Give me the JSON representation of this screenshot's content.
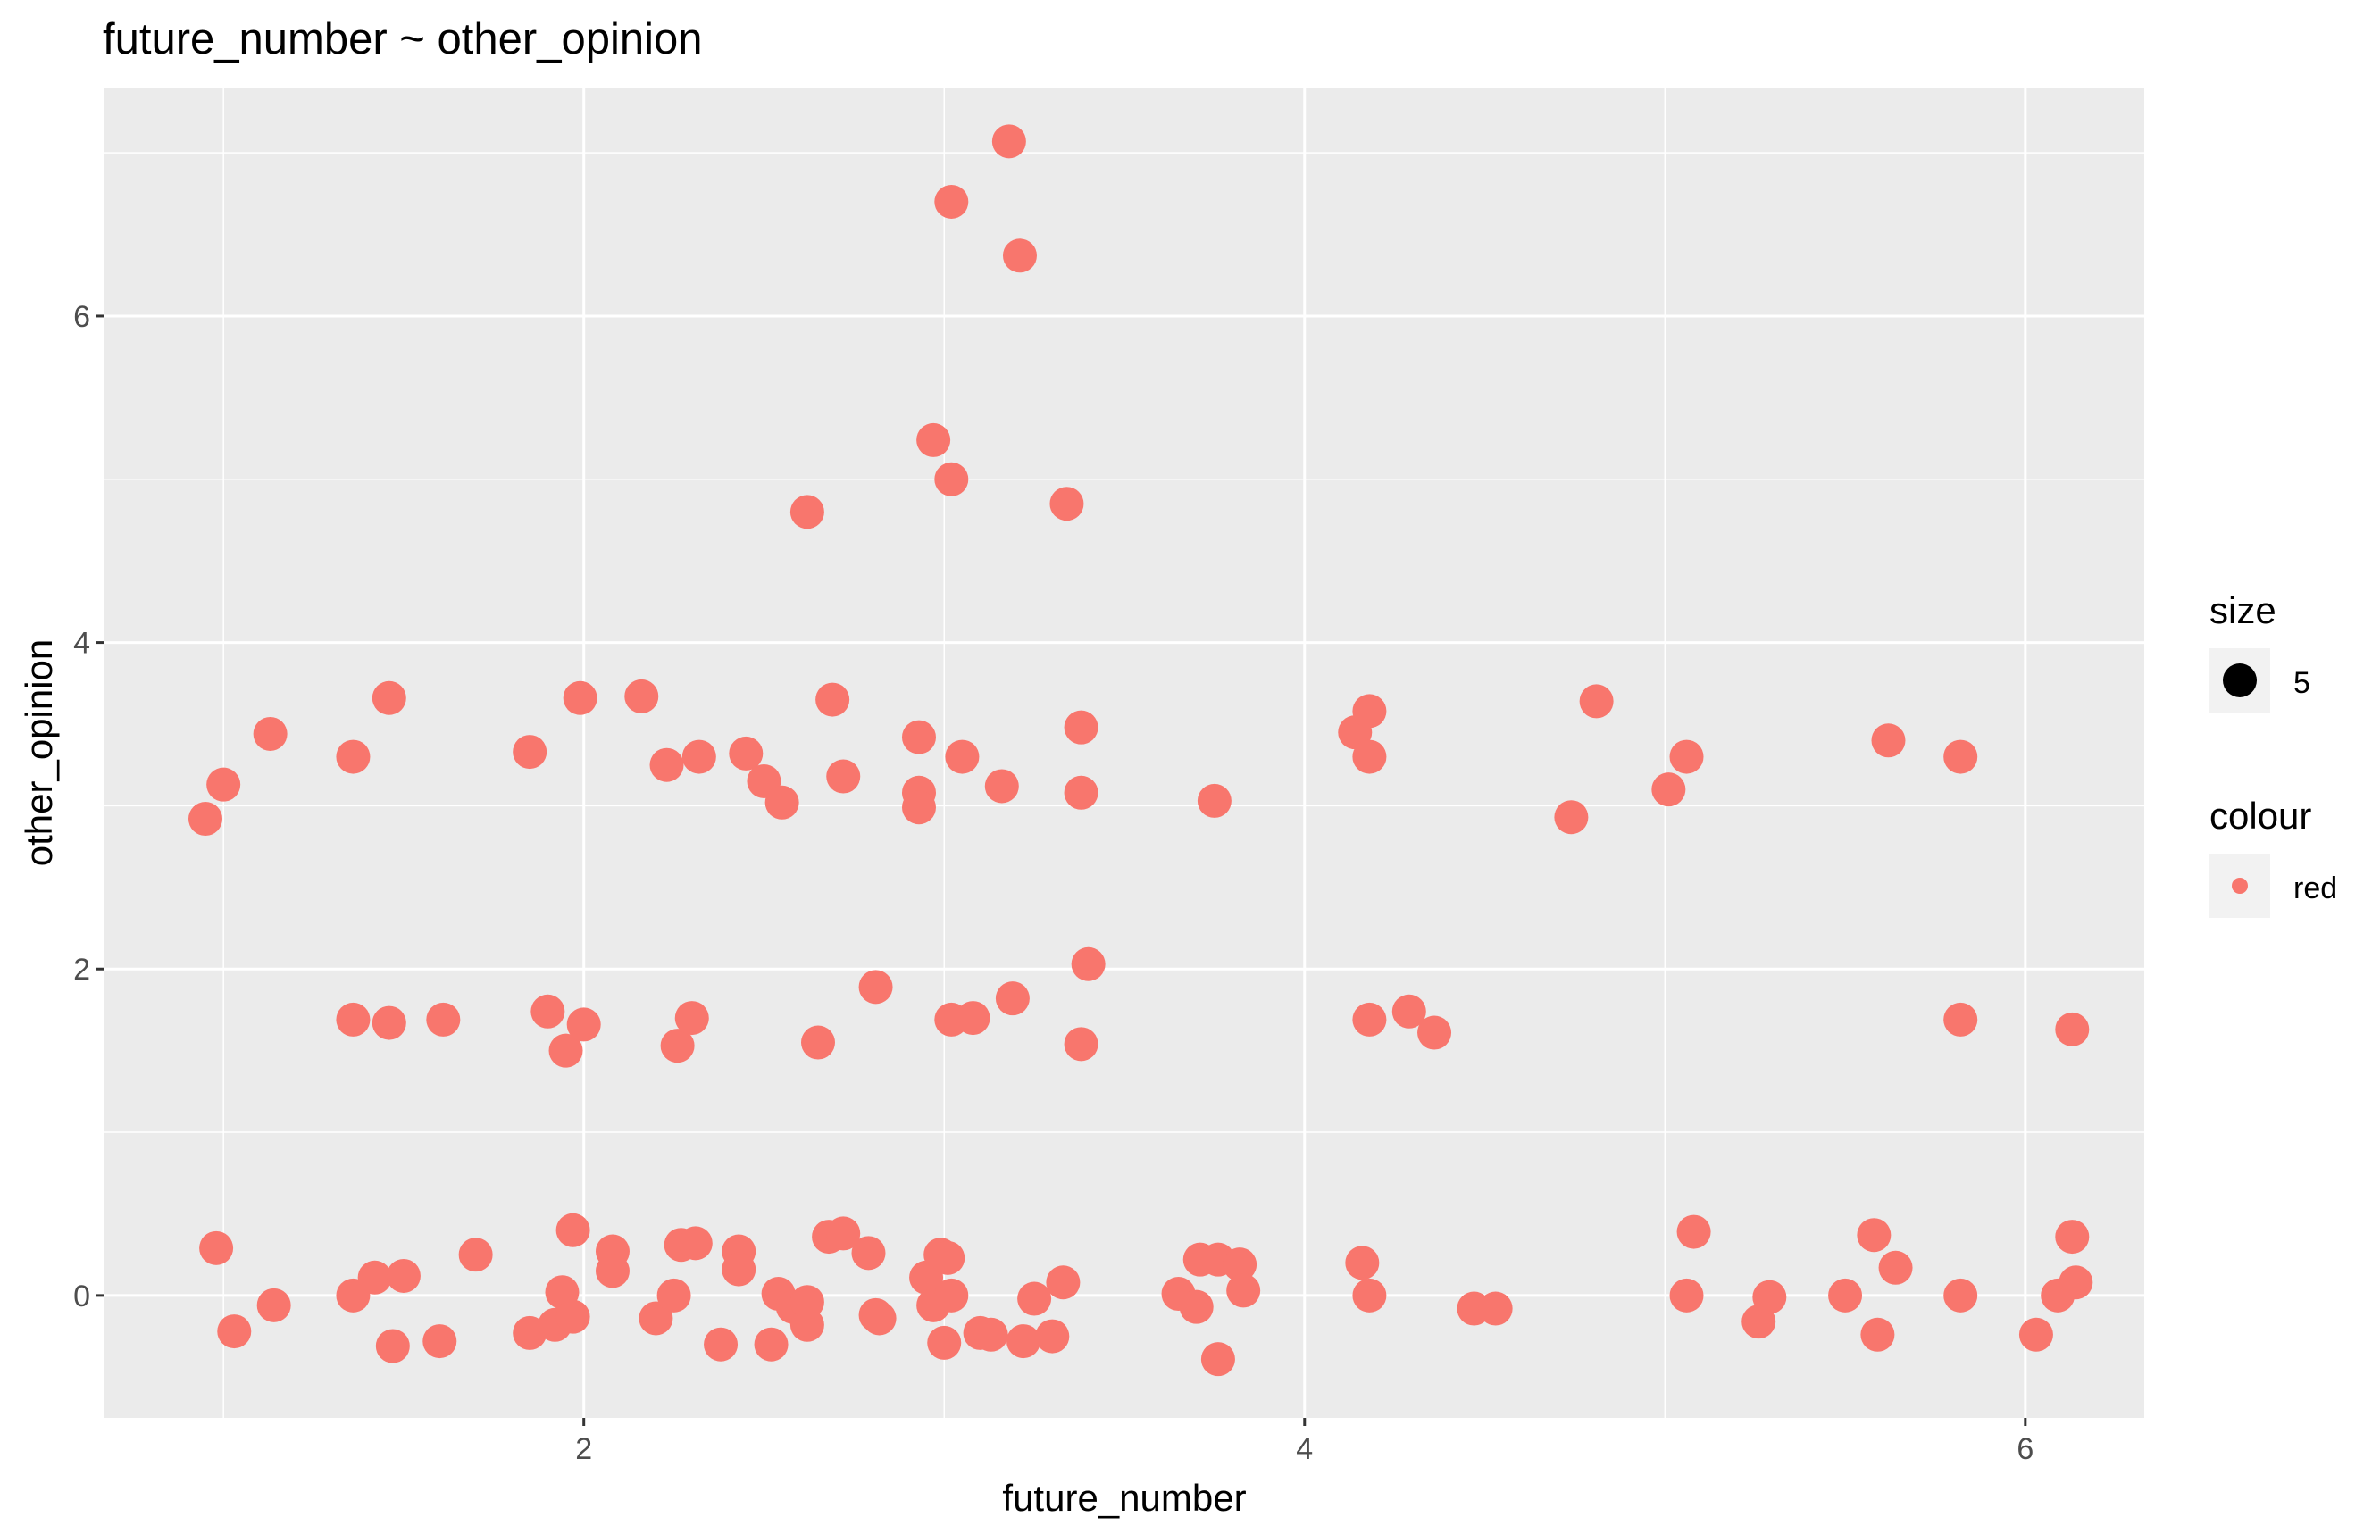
{
  "chart_data": {
    "type": "scatter",
    "title": "future_number ~ other_opinion",
    "xlabel": "future_number",
    "ylabel": "other_opinion",
    "xlim": [
      0.67,
      6.33
    ],
    "ylim": [
      -0.75,
      7.4
    ],
    "x_ticks": [
      2,
      4,
      6
    ],
    "x_tick_labels": [
      "2",
      "4",
      "6"
    ],
    "y_ticks": [
      0,
      2,
      4,
      6
    ],
    "y_tick_labels": [
      "0",
      "2",
      "4",
      "6"
    ],
    "grid": true,
    "legend_placement": "right",
    "point_color": "#F8766D",
    "point_size": 5,
    "legend": [
      {
        "title": "size",
        "label": "5"
      },
      {
        "title": "colour",
        "label": "red"
      }
    ],
    "points": [
      {
        "x": 3.18,
        "y": 7.07
      },
      {
        "x": 3.02,
        "y": 6.7
      },
      {
        "x": 3.21,
        "y": 6.37
      },
      {
        "x": 2.97,
        "y": 5.24
      },
      {
        "x": 3.02,
        "y": 5.0
      },
      {
        "x": 2.62,
        "y": 4.8
      },
      {
        "x": 3.34,
        "y": 4.85
      },
      {
        "x": 0.95,
        "y": 2.92
      },
      {
        "x": 1.0,
        "y": 3.13
      },
      {
        "x": 1.13,
        "y": 3.44
      },
      {
        "x": 1.36,
        "y": 3.3
      },
      {
        "x": 1.46,
        "y": 3.66
      },
      {
        "x": 1.85,
        "y": 3.33
      },
      {
        "x": 1.99,
        "y": 3.66
      },
      {
        "x": 2.16,
        "y": 3.67
      },
      {
        "x": 2.23,
        "y": 3.25
      },
      {
        "x": 2.32,
        "y": 3.3
      },
      {
        "x": 2.45,
        "y": 3.32
      },
      {
        "x": 2.5,
        "y": 3.15
      },
      {
        "x": 2.55,
        "y": 3.02
      },
      {
        "x": 2.69,
        "y": 3.65
      },
      {
        "x": 2.72,
        "y": 3.18
      },
      {
        "x": 2.93,
        "y": 3.42
      },
      {
        "x": 2.93,
        "y": 3.08
      },
      {
        "x": 2.93,
        "y": 2.99
      },
      {
        "x": 3.05,
        "y": 3.3
      },
      {
        "x": 3.16,
        "y": 3.12
      },
      {
        "x": 3.38,
        "y": 3.48
      },
      {
        "x": 3.38,
        "y": 3.08
      },
      {
        "x": 3.75,
        "y": 3.03
      },
      {
        "x": 4.14,
        "y": 3.45
      },
      {
        "x": 4.18,
        "y": 3.58
      },
      {
        "x": 4.18,
        "y": 3.3
      },
      {
        "x": 4.74,
        "y": 2.93
      },
      {
        "x": 4.81,
        "y": 3.64
      },
      {
        "x": 5.01,
        "y": 3.1
      },
      {
        "x": 5.06,
        "y": 3.3
      },
      {
        "x": 5.62,
        "y": 3.4
      },
      {
        "x": 5.82,
        "y": 3.3
      },
      {
        "x": 1.36,
        "y": 1.69
      },
      {
        "x": 1.46,
        "y": 1.67
      },
      {
        "x": 1.61,
        "y": 1.69
      },
      {
        "x": 1.9,
        "y": 1.74
      },
      {
        "x": 1.95,
        "y": 1.5
      },
      {
        "x": 2.0,
        "y": 1.66
      },
      {
        "x": 2.26,
        "y": 1.53
      },
      {
        "x": 2.3,
        "y": 1.7
      },
      {
        "x": 2.65,
        "y": 1.55
      },
      {
        "x": 2.81,
        "y": 1.89
      },
      {
        "x": 3.02,
        "y": 1.69
      },
      {
        "x": 3.08,
        "y": 1.7
      },
      {
        "x": 3.19,
        "y": 1.82
      },
      {
        "x": 3.38,
        "y": 1.54
      },
      {
        "x": 3.4,
        "y": 2.03
      },
      {
        "x": 4.18,
        "y": 1.69
      },
      {
        "x": 4.29,
        "y": 1.74
      },
      {
        "x": 4.36,
        "y": 1.61
      },
      {
        "x": 5.82,
        "y": 1.69
      },
      {
        "x": 6.13,
        "y": 1.63
      },
      {
        "x": 0.98,
        "y": 0.29
      },
      {
        "x": 1.03,
        "y": -0.22
      },
      {
        "x": 1.14,
        "y": -0.06
      },
      {
        "x": 1.36,
        "y": 0.0
      },
      {
        "x": 1.42,
        "y": 0.11
      },
      {
        "x": 1.47,
        "y": -0.31
      },
      {
        "x": 1.5,
        "y": 0.12
      },
      {
        "x": 1.6,
        "y": -0.28
      },
      {
        "x": 1.7,
        "y": 0.25
      },
      {
        "x": 1.85,
        "y": -0.23
      },
      {
        "x": 1.92,
        "y": -0.18
      },
      {
        "x": 1.94,
        "y": 0.02
      },
      {
        "x": 1.97,
        "y": -0.13
      },
      {
        "x": 1.97,
        "y": 0.4
      },
      {
        "x": 2.08,
        "y": 0.27
      },
      {
        "x": 2.08,
        "y": 0.15
      },
      {
        "x": 2.2,
        "y": -0.14
      },
      {
        "x": 2.25,
        "y": 0.0
      },
      {
        "x": 2.27,
        "y": 0.31
      },
      {
        "x": 2.31,
        "y": 0.32
      },
      {
        "x": 2.38,
        "y": -0.3
      },
      {
        "x": 2.43,
        "y": 0.27
      },
      {
        "x": 2.43,
        "y": 0.16
      },
      {
        "x": 2.52,
        "y": -0.3
      },
      {
        "x": 2.54,
        "y": 0.01
      },
      {
        "x": 2.58,
        "y": -0.07
      },
      {
        "x": 2.62,
        "y": -0.18
      },
      {
        "x": 2.62,
        "y": -0.04
      },
      {
        "x": 2.68,
        "y": 0.36
      },
      {
        "x": 2.72,
        "y": 0.38
      },
      {
        "x": 2.79,
        "y": 0.26
      },
      {
        "x": 2.81,
        "y": -0.12
      },
      {
        "x": 2.82,
        "y": -0.14
      },
      {
        "x": 2.95,
        "y": 0.11
      },
      {
        "x": 2.97,
        "y": -0.06
      },
      {
        "x": 2.99,
        "y": 0.25
      },
      {
        "x": 3.0,
        "y": -0.29
      },
      {
        "x": 3.01,
        "y": 0.23
      },
      {
        "x": 3.02,
        "y": 0.0
      },
      {
        "x": 3.1,
        "y": -0.23
      },
      {
        "x": 3.13,
        "y": -0.24
      },
      {
        "x": 3.22,
        "y": -0.28
      },
      {
        "x": 3.25,
        "y": -0.02
      },
      {
        "x": 3.3,
        "y": -0.25
      },
      {
        "x": 3.33,
        "y": 0.08
      },
      {
        "x": 3.65,
        "y": 0.01
      },
      {
        "x": 3.7,
        "y": -0.07
      },
      {
        "x": 3.71,
        "y": 0.22
      },
      {
        "x": 3.76,
        "y": 0.22
      },
      {
        "x": 3.76,
        "y": -0.39
      },
      {
        "x": 3.82,
        "y": 0.19
      },
      {
        "x": 3.83,
        "y": 0.03
      },
      {
        "x": 4.16,
        "y": 0.2
      },
      {
        "x": 4.18,
        "y": 0.0
      },
      {
        "x": 4.47,
        "y": -0.08
      },
      {
        "x": 4.53,
        "y": -0.08
      },
      {
        "x": 5.06,
        "y": 0.0
      },
      {
        "x": 5.08,
        "y": 0.39
      },
      {
        "x": 5.26,
        "y": -0.16
      },
      {
        "x": 5.29,
        "y": -0.01
      },
      {
        "x": 5.5,
        "y": 0.0
      },
      {
        "x": 5.58,
        "y": 0.37
      },
      {
        "x": 5.59,
        "y": -0.24
      },
      {
        "x": 5.64,
        "y": 0.17
      },
      {
        "x": 5.82,
        "y": 0.0
      },
      {
        "x": 6.03,
        "y": -0.24
      },
      {
        "x": 6.09,
        "y": 0.0
      },
      {
        "x": 6.13,
        "y": 0.36
      },
      {
        "x": 6.14,
        "y": 0.08
      }
    ]
  }
}
